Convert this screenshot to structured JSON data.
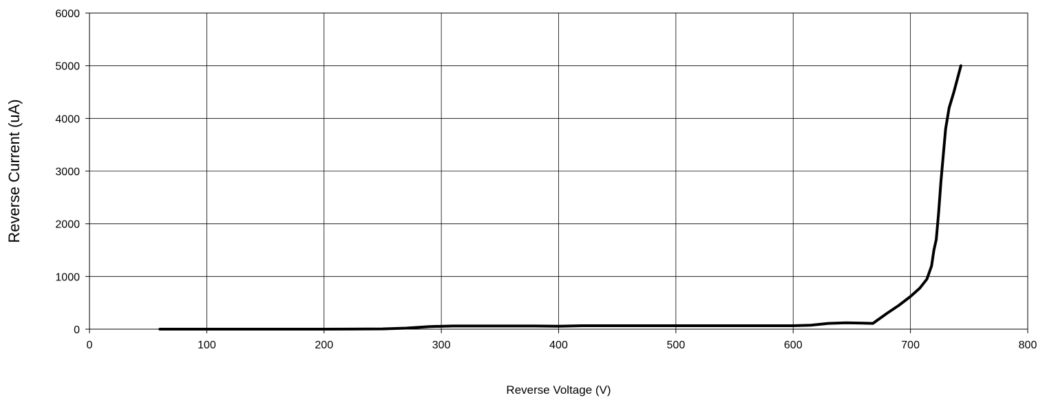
{
  "chart_data": {
    "type": "line",
    "title": "",
    "xlabel": "Reverse Voltage (V)",
    "ylabel": "Reverse Current (uA)",
    "xlim": [
      0,
      800
    ],
    "ylim": [
      0,
      6000
    ],
    "x_ticks": [
      "0",
      "100",
      "200",
      "300",
      "400",
      "500",
      "600",
      "700",
      "800"
    ],
    "y_ticks": [
      "0",
      "1000",
      "2000",
      "3000",
      "4000",
      "5000",
      "6000"
    ],
    "grid": true,
    "legend": "none",
    "line_color": "#000000",
    "series": [
      {
        "points": [
          [
            60,
            0
          ],
          [
            100,
            0
          ],
          [
            150,
            0
          ],
          [
            200,
            0
          ],
          [
            250,
            5
          ],
          [
            270,
            20
          ],
          [
            290,
            50
          ],
          [
            310,
            60
          ],
          [
            350,
            60
          ],
          [
            380,
            60
          ],
          [
            400,
            55
          ],
          [
            420,
            65
          ],
          [
            450,
            65
          ],
          [
            500,
            65
          ],
          [
            550,
            65
          ],
          [
            600,
            65
          ],
          [
            615,
            75
          ],
          [
            630,
            110
          ],
          [
            645,
            120
          ],
          [
            660,
            115
          ],
          [
            668,
            110
          ],
          [
            680,
            300
          ],
          [
            690,
            450
          ],
          [
            700,
            620
          ],
          [
            708,
            780
          ],
          [
            714,
            950
          ],
          [
            718,
            1200
          ],
          [
            720,
            1500
          ],
          [
            722,
            1700
          ],
          [
            724,
            2200
          ],
          [
            726,
            2800
          ],
          [
            728,
            3300
          ],
          [
            730,
            3800
          ],
          [
            733,
            4200
          ],
          [
            737,
            4500
          ],
          [
            743,
            5000
          ]
        ]
      }
    ]
  }
}
